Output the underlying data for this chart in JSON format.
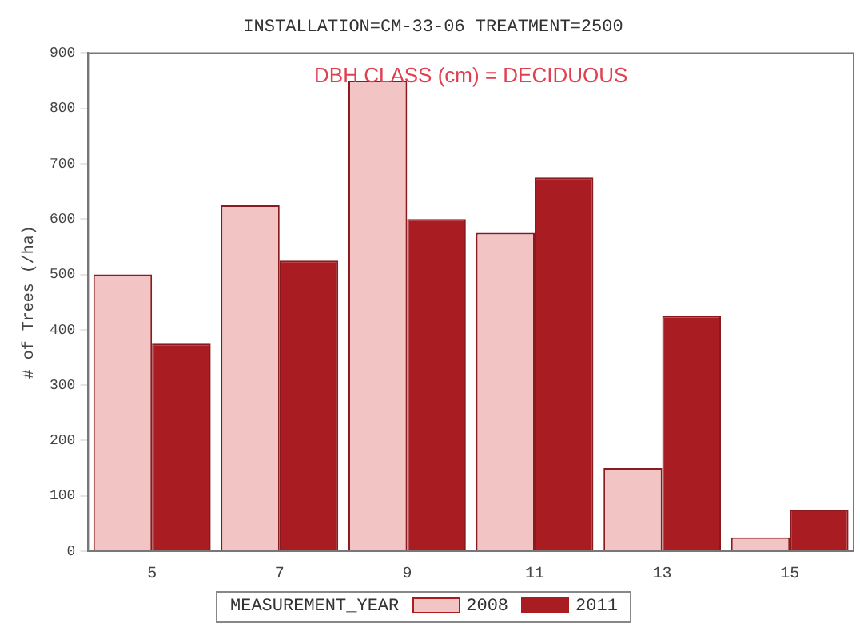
{
  "chart_data": {
    "type": "bar",
    "title": "INSTALLATION=CM-33-06 TREATMENT=2500",
    "ylabel": "# of Trees (/ha)",
    "legend_title": "MEASUREMENT_YEAR",
    "annotations": [
      "DBH CLASS (cm) = DECIDUOUS"
    ],
    "categories": [
      "5",
      "7",
      "9",
      "11",
      "13",
      "15"
    ],
    "series": [
      {
        "name": "2008",
        "color": "#f2c4c4",
        "values": [
          500,
          625,
          850,
          575,
          150,
          25
        ]
      },
      {
        "name": "2011",
        "color": "#a81c22",
        "values": [
          375,
          525,
          600,
          675,
          425,
          75
        ]
      }
    ],
    "ylim": [
      0,
      900
    ],
    "yticks": [
      0,
      100,
      200,
      300,
      400,
      500,
      600,
      700,
      800,
      900
    ],
    "grid": false,
    "legend": "bottom"
  }
}
